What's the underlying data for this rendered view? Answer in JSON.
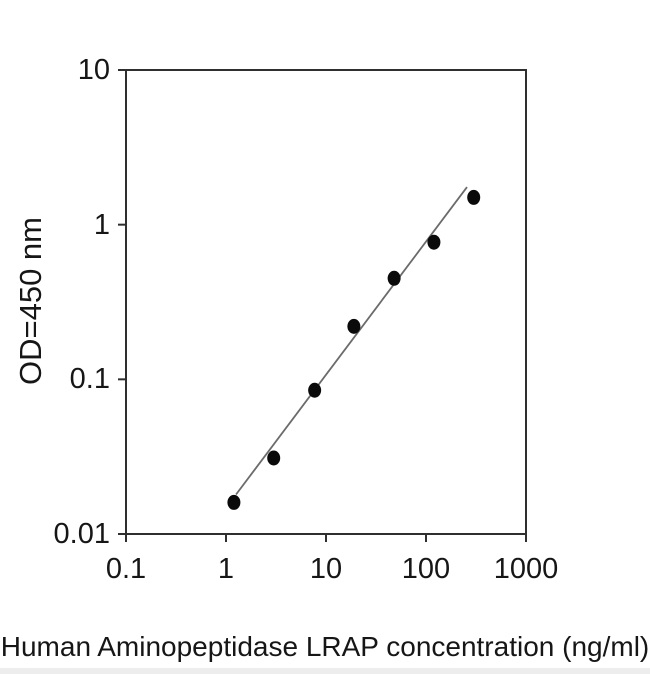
{
  "figure": {
    "kind": "elisa-standard-curve"
  },
  "chart_data": {
    "type": "scatter",
    "x_scale": "log",
    "y_scale": "log",
    "title": "",
    "xlabel": "Human Aminopeptidase LRAP concentration (ng/ml)",
    "ylabel": "OD=450 nm",
    "xlim": [
      0.1,
      1000
    ],
    "ylim": [
      0.01,
      10
    ],
    "x_ticks": [
      "0.1",
      "1",
      "10",
      "100",
      "1000"
    ],
    "y_ticks": [
      "10",
      "1",
      "0.1",
      "0.01"
    ],
    "grid": false,
    "legend": "none",
    "series": [
      {
        "name": "standard-curve-points",
        "x": [
          1.2,
          3,
          7.7,
          19,
          48,
          120,
          300
        ],
        "y": [
          0.016,
          0.031,
          0.085,
          0.22,
          0.45,
          0.77,
          1.5
        ]
      }
    ],
    "trendline": {
      "name": "linear-fit-line",
      "x1": 1.26,
      "y1": 0.018,
      "x2": 257,
      "y2": 1.75
    },
    "colors": {
      "axis": "#2f2f2f",
      "fit_line": "#6b6b6b",
      "marker": "#0a0a0a",
      "text": "#161616"
    }
  }
}
